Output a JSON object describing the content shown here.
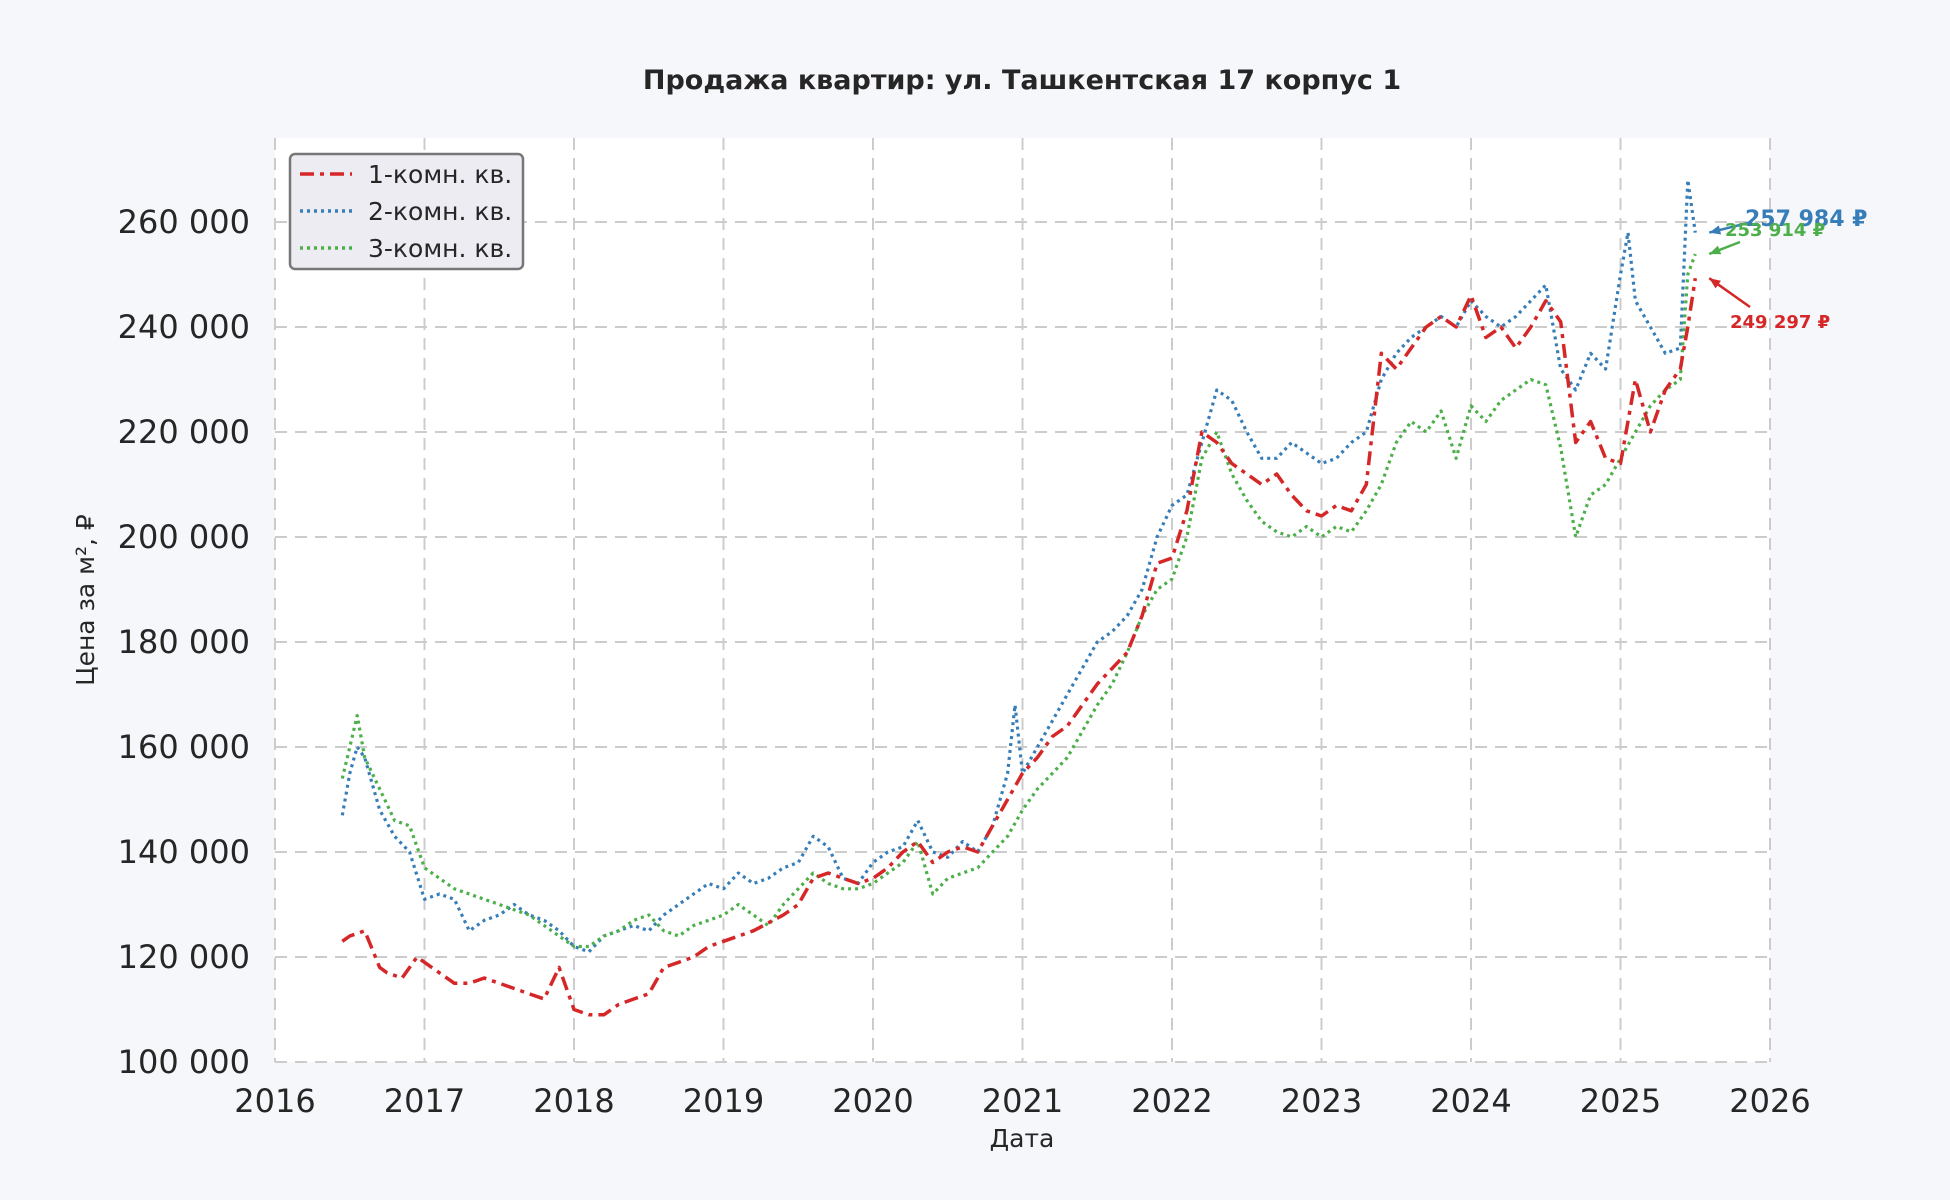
{
  "chart_data": {
    "type": "line",
    "title": "Продажа квартир: ул. Ташкентская 17 корпус 1",
    "xlabel": "Дата",
    "ylabel": "Цена за м², ₽",
    "xlim": [
      2016,
      2026
    ],
    "ylim": [
      100000,
      276000
    ],
    "x_ticks": [
      2016,
      2017,
      2018,
      2019,
      2020,
      2021,
      2022,
      2023,
      2024,
      2025,
      2026
    ],
    "x_tick_labels": [
      "2016",
      "2017",
      "2018",
      "2019",
      "2020",
      "2021",
      "2022",
      "2023",
      "2024",
      "2025",
      "2026"
    ],
    "y_ticks": [
      100000,
      120000,
      140000,
      160000,
      180000,
      200000,
      220000,
      240000,
      260000
    ],
    "y_tick_labels": [
      "100 000",
      "120 000",
      "140 000",
      "160 000",
      "180 000",
      "200 000",
      "220 000",
      "240 000",
      "260 000"
    ],
    "grid": true,
    "legend_position": "top-left",
    "series": [
      {
        "name": "1-комн. кв.",
        "color": "#d62728",
        "style": "dashdot",
        "x": [
          2016.45,
          2016.5,
          2016.6,
          2016.7,
          2016.75,
          2016.85,
          2016.95,
          2017.0,
          2017.1,
          2017.2,
          2017.3,
          2017.4,
          2017.5,
          2017.6,
          2017.7,
          2017.8,
          2017.9,
          2018.0,
          2018.1,
          2018.2,
          2018.3,
          2018.4,
          2018.5,
          2018.6,
          2018.7,
          2018.8,
          2018.9,
          2019.0,
          2019.2,
          2019.4,
          2019.5,
          2019.6,
          2019.7,
          2019.8,
          2019.9,
          2020.0,
          2020.1,
          2020.2,
          2020.3,
          2020.4,
          2020.5,
          2020.6,
          2020.7,
          2020.8,
          2020.9,
          2021.0,
          2021.1,
          2021.2,
          2021.3,
          2021.4,
          2021.5,
          2021.6,
          2021.7,
          2021.8,
          2021.9,
          2022.0,
          2022.1,
          2022.2,
          2022.3,
          2022.4,
          2022.5,
          2022.6,
          2022.7,
          2022.8,
          2022.9,
          2023.0,
          2023.1,
          2023.2,
          2023.3,
          2023.4,
          2023.5,
          2023.6,
          2023.7,
          2023.8,
          2023.9,
          2024.0,
          2024.1,
          2024.2,
          2024.3,
          2024.4,
          2024.5,
          2024.6,
          2024.7,
          2024.8,
          2024.9,
          2025.0,
          2025.1,
          2025.2,
          2025.3,
          2025.4,
          2025.45,
          2025.5
        ],
        "y": [
          123000,
          124000,
          125000,
          118000,
          117000,
          116000,
          120000,
          119000,
          117000,
          115000,
          115000,
          116000,
          115000,
          114000,
          113000,
          112000,
          118000,
          110000,
          109000,
          109000,
          111000,
          112000,
          113000,
          118000,
          119000,
          120000,
          122000,
          123000,
          125000,
          128000,
          130000,
          135000,
          136000,
          135000,
          134000,
          135000,
          137000,
          140000,
          142000,
          138000,
          140000,
          141000,
          140000,
          145000,
          150000,
          155000,
          158000,
          162000,
          164000,
          168000,
          172000,
          175000,
          178000,
          185000,
          195000,
          196000,
          205000,
          220000,
          218000,
          214000,
          212000,
          210000,
          212000,
          208000,
          205000,
          204000,
          206000,
          205000,
          210000,
          235000,
          232000,
          236000,
          240000,
          242000,
          240000,
          246000,
          238000,
          240000,
          236000,
          240000,
          245000,
          241000,
          218000,
          222000,
          215000,
          214000,
          230000,
          220000,
          228000,
          232000,
          240000,
          249297
        ]
      },
      {
        "name": "2-комн. кв.",
        "color": "#377eb8",
        "style": "dotted",
        "x": [
          2016.45,
          2016.5,
          2016.55,
          2016.6,
          2016.7,
          2016.8,
          2016.9,
          2017.0,
          2017.1,
          2017.2,
          2017.3,
          2017.4,
          2017.5,
          2017.6,
          2017.7,
          2017.8,
          2017.9,
          2018.0,
          2018.1,
          2018.2,
          2018.3,
          2018.4,
          2018.5,
          2018.6,
          2018.7,
          2018.8,
          2018.9,
          2019.0,
          2019.1,
          2019.2,
          2019.3,
          2019.4,
          2019.5,
          2019.6,
          2019.7,
          2019.8,
          2019.9,
          2020.0,
          2020.1,
          2020.2,
          2020.3,
          2020.4,
          2020.5,
          2020.6,
          2020.7,
          2020.8,
          2020.9,
          2020.95,
          2021.0,
          2021.1,
          2021.2,
          2021.3,
          2021.4,
          2021.5,
          2021.6,
          2021.7,
          2021.8,
          2021.9,
          2022.0,
          2022.1,
          2022.2,
          2022.3,
          2022.4,
          2022.5,
          2022.6,
          2022.7,
          2022.8,
          2022.9,
          2023.0,
          2023.1,
          2023.2,
          2023.3,
          2023.4,
          2023.5,
          2023.6,
          2023.7,
          2023.8,
          2023.9,
          2024.0,
          2024.1,
          2024.2,
          2024.3,
          2024.4,
          2024.5,
          2024.6,
          2024.7,
          2024.8,
          2024.9,
          2025.0,
          2025.05,
          2025.1,
          2025.2,
          2025.3,
          2025.4,
          2025.45,
          2025.5
        ],
        "y": [
          147000,
          155000,
          160000,
          158000,
          148000,
          143000,
          140000,
          131000,
          132000,
          131000,
          125000,
          127000,
          128000,
          130000,
          128000,
          127000,
          125000,
          122000,
          121000,
          124000,
          125000,
          126000,
          125000,
          128000,
          130000,
          132000,
          134000,
          133000,
          136000,
          134000,
          135000,
          137000,
          138000,
          143000,
          141000,
          135000,
          134000,
          138000,
          140000,
          141000,
          146000,
          140000,
          139000,
          142000,
          140000,
          145000,
          155000,
          168000,
          155000,
          160000,
          165000,
          170000,
          175000,
          180000,
          182000,
          185000,
          190000,
          200000,
          206000,
          208000,
          218000,
          228000,
          226000,
          220000,
          215000,
          215000,
          218000,
          216000,
          214000,
          215000,
          218000,
          220000,
          230000,
          235000,
          238000,
          240000,
          242000,
          240000,
          245000,
          242000,
          240000,
          242000,
          245000,
          248000,
          232000,
          228000,
          235000,
          232000,
          250000,
          258000,
          245000,
          240000,
          235000,
          236000,
          268000,
          257984
        ]
      },
      {
        "name": "3-комн. кв.",
        "color": "#4daf4a",
        "style": "dotted",
        "x": [
          2016.45,
          2016.5,
          2016.55,
          2016.6,
          2016.7,
          2016.8,
          2016.9,
          2017.0,
          2017.1,
          2017.2,
          2017.3,
          2017.4,
          2017.5,
          2017.6,
          2017.7,
          2017.8,
          2017.9,
          2018.0,
          2018.1,
          2018.2,
          2018.3,
          2018.4,
          2018.5,
          2018.6,
          2018.7,
          2018.8,
          2018.9,
          2019.0,
          2019.1,
          2019.2,
          2019.3,
          2019.4,
          2019.5,
          2019.6,
          2019.7,
          2019.8,
          2019.9,
          2020.0,
          2020.1,
          2020.2,
          2020.3,
          2020.4,
          2020.5,
          2020.6,
          2020.7,
          2020.8,
          2020.9,
          2021.0,
          2021.1,
          2021.2,
          2021.3,
          2021.4,
          2021.5,
          2021.6,
          2021.7,
          2021.8,
          2021.9,
          2022.0,
          2022.1,
          2022.2,
          2022.3,
          2022.4,
          2022.5,
          2022.6,
          2022.7,
          2022.8,
          2022.9,
          2023.0,
          2023.1,
          2023.2,
          2023.3,
          2023.4,
          2023.5,
          2023.6,
          2023.7,
          2023.8,
          2023.9,
          2024.0,
          2024.1,
          2024.2,
          2024.3,
          2024.4,
          2024.5,
          2024.6,
          2024.7,
          2024.8,
          2024.9,
          2025.0,
          2025.1,
          2025.2,
          2025.3,
          2025.4,
          2025.45,
          2025.5
        ],
        "y": [
          154000,
          160000,
          166000,
          158000,
          152000,
          146000,
          145000,
          137000,
          135000,
          133000,
          132000,
          131000,
          130000,
          129000,
          128000,
          126000,
          124000,
          122000,
          122000,
          124000,
          125000,
          127000,
          128000,
          125000,
          124000,
          126000,
          127000,
          128000,
          130000,
          128000,
          126000,
          130000,
          133000,
          136000,
          134000,
          133000,
          133000,
          134000,
          136000,
          138000,
          142000,
          132000,
          135000,
          136000,
          137000,
          140000,
          143000,
          148000,
          152000,
          155000,
          158000,
          163000,
          168000,
          172000,
          178000,
          185000,
          190000,
          192000,
          200000,
          215000,
          220000,
          212000,
          207000,
          203000,
          201000,
          200000,
          202000,
          200000,
          202000,
          201000,
          205000,
          210000,
          218000,
          222000,
          220000,
          224000,
          215000,
          225000,
          222000,
          226000,
          228000,
          230000,
          229000,
          217000,
          200000,
          208000,
          210000,
          215000,
          220000,
          225000,
          228000,
          230000,
          250000,
          253914
        ]
      }
    ],
    "annotations": [
      {
        "text": "257 984 ₽",
        "series": "2-комн. кв."
      },
      {
        "text": "253 914 ₽",
        "series": "3-комн. кв."
      },
      {
        "text": "249 297 ₽",
        "series": "1-комн. кв."
      }
    ]
  }
}
